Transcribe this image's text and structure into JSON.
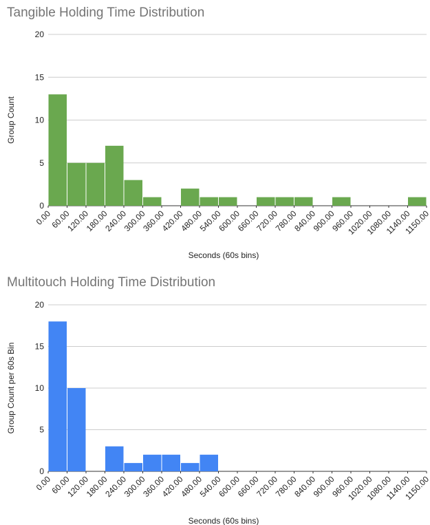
{
  "chart_data": [
    {
      "type": "histogram",
      "title": "Tangible Holding Time Distribution",
      "x_label": "Seconds (60s bins)",
      "y_label": "Group Count",
      "color": "#6aa84f",
      "bins": [
        0,
        60,
        120,
        180,
        240,
        300,
        360,
        420,
        480,
        540,
        600,
        660,
        720,
        780,
        840,
        900,
        960,
        1020,
        1080,
        1140,
        1150
      ],
      "values": [
        13,
        5,
        5,
        7,
        3,
        1,
        0,
        2,
        1,
        1,
        0,
        1,
        1,
        1,
        0,
        1,
        0,
        0,
        0,
        1
      ],
      "xticks": [
        {
          "value": 0,
          "label": "0.00"
        },
        {
          "value": 60,
          "label": "60.00"
        },
        {
          "value": 120,
          "label": "120.00"
        },
        {
          "value": 180,
          "label": "180.00"
        },
        {
          "value": 240,
          "label": "240.00"
        },
        {
          "value": 300,
          "label": "300.00"
        },
        {
          "value": 360,
          "label": "360.00"
        },
        {
          "value": 420,
          "label": "420.00"
        },
        {
          "value": 480,
          "label": "480.00"
        },
        {
          "value": 540,
          "label": "540.00"
        },
        {
          "value": 600,
          "label": "600.00"
        },
        {
          "value": 660,
          "label": "660.00"
        },
        {
          "value": 720,
          "label": "720.00"
        },
        {
          "value": 780,
          "label": "780.00"
        },
        {
          "value": 840,
          "label": "840.00"
        },
        {
          "value": 900,
          "label": "900.00"
        },
        {
          "value": 960,
          "label": "960.00"
        },
        {
          "value": 1020,
          "label": "1020.00"
        },
        {
          "value": 1080,
          "label": "1080.00"
        },
        {
          "value": 1140,
          "label": "1140.00"
        },
        {
          "value": 1150,
          "label": "1150.00"
        }
      ],
      "ylim": [
        0,
        20
      ],
      "yticks": [
        0,
        5,
        10,
        15,
        20
      ],
      "grid": true
    },
    {
      "type": "histogram",
      "title": "Multitouch Holding Time Distribution",
      "x_label": "Seconds (60s bins)",
      "y_label": "Group Count per 60s Bin",
      "color": "#4285f4",
      "bins": [
        0,
        60,
        120,
        180,
        240,
        300,
        360,
        420,
        480,
        540,
        600,
        660,
        720,
        780,
        840,
        900,
        960,
        1020,
        1080,
        1140,
        1150
      ],
      "values": [
        18,
        10,
        0,
        3,
        1,
        2,
        2,
        1,
        2,
        0,
        0,
        0,
        0,
        0,
        0,
        0,
        0,
        0,
        0,
        0
      ],
      "xticks": [
        {
          "value": 0,
          "label": "0.00"
        },
        {
          "value": 60,
          "label": "60.00"
        },
        {
          "value": 120,
          "label": "120.00"
        },
        {
          "value": 180,
          "label": "180.00"
        },
        {
          "value": 240,
          "label": "240.00"
        },
        {
          "value": 300,
          "label": "300.00"
        },
        {
          "value": 360,
          "label": "360.00"
        },
        {
          "value": 420,
          "label": "420.00"
        },
        {
          "value": 480,
          "label": "480.00"
        },
        {
          "value": 540,
          "label": "540.00"
        },
        {
          "value": 600,
          "label": "600.00"
        },
        {
          "value": 660,
          "label": "660.00"
        },
        {
          "value": 720,
          "label": "720.00"
        },
        {
          "value": 780,
          "label": "780.00"
        },
        {
          "value": 840,
          "label": "840.00"
        },
        {
          "value": 900,
          "label": "900.00"
        },
        {
          "value": 960,
          "label": "960.00"
        },
        {
          "value": 1020,
          "label": "1020.00"
        },
        {
          "value": 1080,
          "label": "1080.00"
        },
        {
          "value": 1140,
          "label": "1140.00"
        },
        {
          "value": 1150,
          "label": "1150.00"
        }
      ],
      "ylim": [
        0,
        20
      ],
      "yticks": [
        0,
        5,
        10,
        15,
        20
      ],
      "grid": true
    }
  ]
}
